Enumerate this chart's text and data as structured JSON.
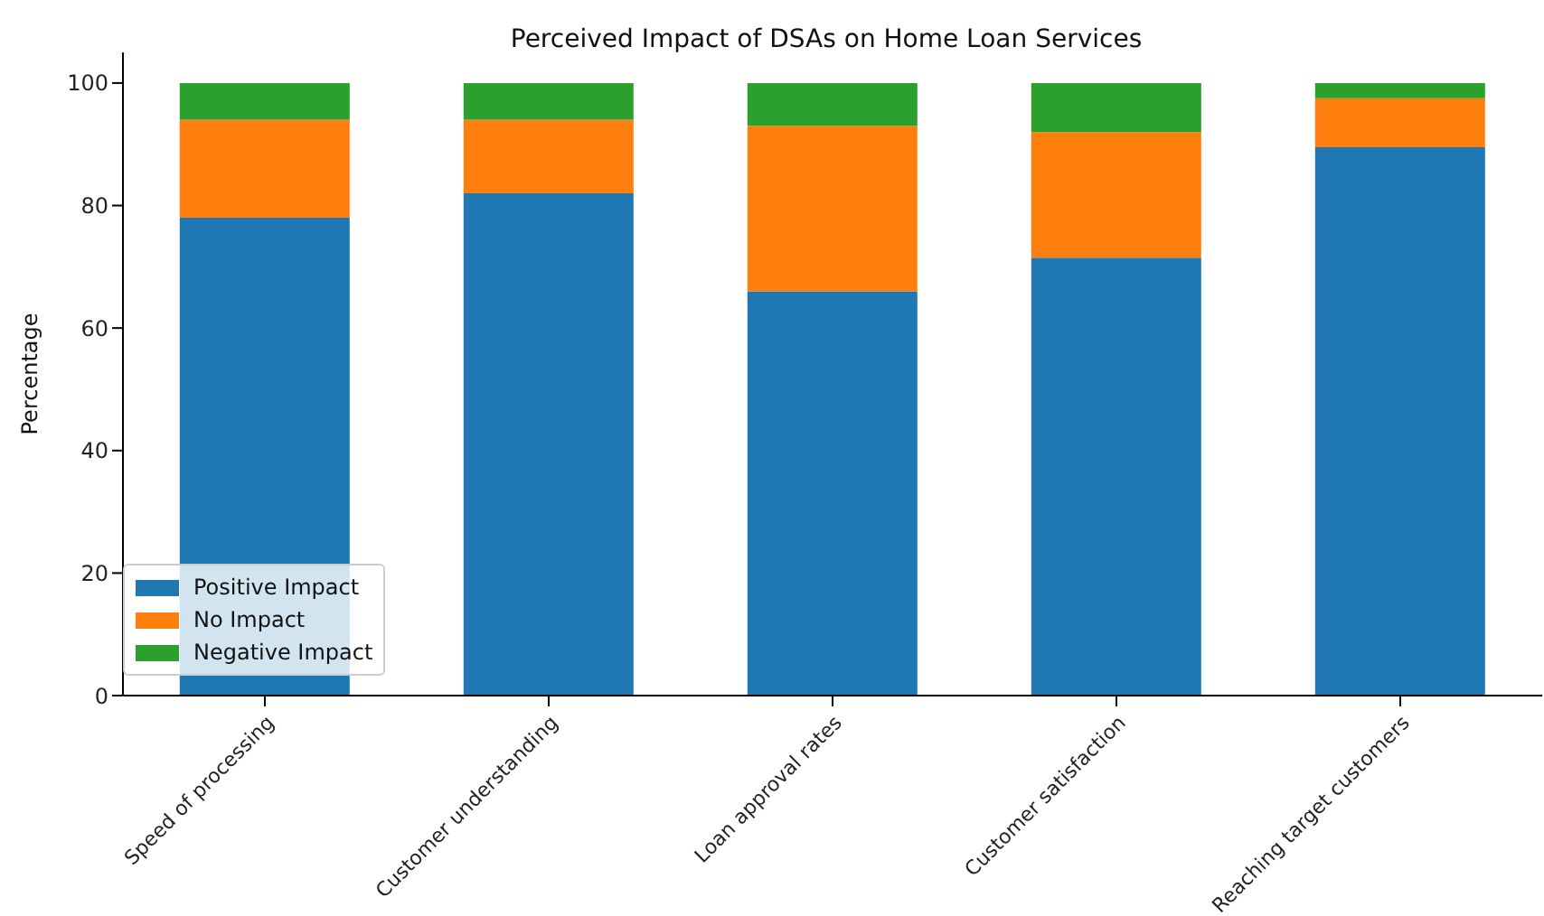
{
  "chart_data": {
    "type": "bar",
    "title": "Perceived Impact of DSAs on Home Loan Services",
    "ylabel": "Percentage",
    "categories": [
      "Speed of processing",
      "Customer understanding",
      "Loan approval rates",
      "Customer satisfaction",
      "Reaching target customers"
    ],
    "series": [
      {
        "name": "Positive Impact",
        "color": "#1f77b4",
        "values": [
          78,
          82,
          66,
          71.5,
          89.5
        ]
      },
      {
        "name": "No Impact",
        "color": "#ff7f0e",
        "values": [
          16,
          12,
          27,
          20.5,
          8
        ]
      },
      {
        "name": "Negative Impact",
        "color": "#2ca02c",
        "values": [
          6,
          6,
          7,
          8,
          2.5
        ]
      }
    ],
    "stacked": true,
    "ylim": [
      0,
      105
    ],
    "yticks": [
      0,
      20,
      40,
      60,
      80,
      100
    ],
    "grid": false,
    "legend": "bottom left"
  }
}
